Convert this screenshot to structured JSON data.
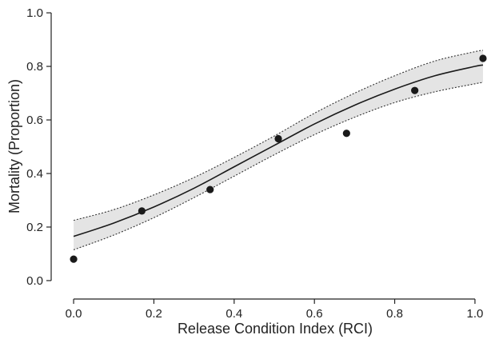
{
  "chart_data": {
    "type": "scatter",
    "title": "",
    "xlabel": "Release Condition Index (RCI)",
    "ylabel": "Mortality (Proportion)",
    "xlim": [
      -0.03,
      1.03
    ],
    "ylim": [
      -0.03,
      1.03
    ],
    "x_ticks": [
      0.0,
      0.2,
      0.4,
      0.6,
      0.8,
      1.0
    ],
    "x_tick_labels": [
      "0.0",
      "0.2",
      "0.4",
      "0.6",
      "0.8",
      "1.0"
    ],
    "y_ticks": [
      0.0,
      0.2,
      0.4,
      0.6,
      0.8,
      1.0
    ],
    "y_tick_labels": [
      "0.0",
      "0.2",
      "0.4",
      "0.6",
      "0.8",
      "1.0"
    ],
    "grid": false,
    "points": [
      {
        "x": 0.0,
        "y": 0.08
      },
      {
        "x": 0.17,
        "y": 0.26
      },
      {
        "x": 0.34,
        "y": 0.34
      },
      {
        "x": 0.51,
        "y": 0.53
      },
      {
        "x": 0.68,
        "y": 0.55
      },
      {
        "x": 0.85,
        "y": 0.71
      },
      {
        "x": 1.02,
        "y": 0.83
      }
    ],
    "fit_curve": {
      "x": [
        0.0,
        0.1,
        0.2,
        0.3,
        0.4,
        0.5,
        0.6,
        0.7,
        0.8,
        0.9,
        1.0,
        1.02
      ],
      "y": [
        0.165,
        0.215,
        0.275,
        0.345,
        0.425,
        0.505,
        0.585,
        0.655,
        0.715,
        0.765,
        0.8,
        0.805
      ]
    },
    "confidence_band": {
      "x": [
        0.0,
        0.1,
        0.2,
        0.3,
        0.4,
        0.5,
        0.6,
        0.7,
        0.8,
        0.9,
        1.0,
        1.02
      ],
      "lower": [
        0.115,
        0.17,
        0.235,
        0.31,
        0.39,
        0.47,
        0.545,
        0.61,
        0.665,
        0.705,
        0.735,
        0.74
      ],
      "upper": [
        0.225,
        0.265,
        0.32,
        0.385,
        0.46,
        0.54,
        0.625,
        0.7,
        0.765,
        0.82,
        0.855,
        0.86
      ]
    },
    "colors": {
      "points": "#1a1a1a",
      "curve": "#1a1a1a",
      "band_fill": "#e4e4e4",
      "band_edge": "#333333",
      "axis": "#222222"
    }
  }
}
